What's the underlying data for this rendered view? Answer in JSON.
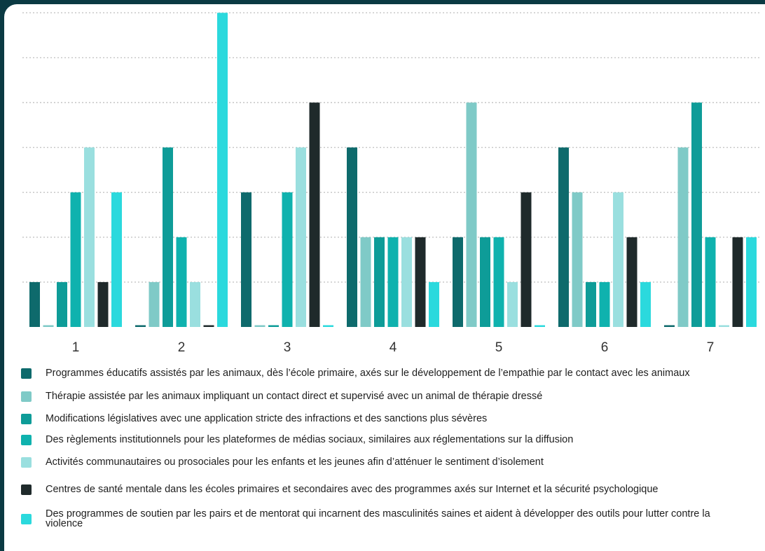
{
  "chart_data": {
    "type": "bar",
    "categories": [
      "1",
      "2",
      "3",
      "4",
      "5",
      "6",
      "7"
    ],
    "ylim": [
      0,
      7
    ],
    "grid": true,
    "legend_position": "bottom",
    "series": [
      {
        "name": "Programmes éducatifs assistés par les animaux, dès l’école primaire, axés sur le développement de l’empathie par le contact avec les animaux",
        "color": "#0e6a6c",
        "values": [
          1,
          0,
          3,
          4,
          2,
          4,
          0
        ]
      },
      {
        "name": "Thérapie assistée par les animaux impliquant un contact direct et supervisé avec un animal de thérapie dressé",
        "color": "#7fcac7",
        "values": [
          0,
          1,
          0,
          2,
          5,
          3,
          4
        ]
      },
      {
        "name": "Modifications législatives avec une application stricte des infractions et des sanctions plus sévères",
        "color": "#0e9c98",
        "values": [
          1,
          4,
          0,
          2,
          2,
          1,
          5
        ]
      },
      {
        "name": "Des règlements institutionnels pour les plateformes de médias sociaux, similaires aux réglementations sur la diffusion",
        "color": "#0fb2ae",
        "values": [
          3,
          2,
          3,
          2,
          2,
          1,
          2
        ]
      },
      {
        "name": "Activités communautaires ou prosociales pour les enfants et les jeunes afin d’atténuer le sentiment d’isolement",
        "color": "#9adfdf",
        "values": [
          4,
          1,
          4,
          2,
          1,
          3,
          0
        ]
      },
      {
        "name": "Centres de santé mentale dans les écoles primaires et secondaires avec des programmes axés sur Internet et la sécurité psychologique",
        "color": "#1f2a2b",
        "values": [
          1,
          0,
          5,
          2,
          3,
          2,
          2
        ]
      },
      {
        "name": "Des programmes de soutien par les pairs et de mentorat qui incarnent des masculinités saines et aident à développer des outils pour lutter contre la violence",
        "color": "#2bd9dd",
        "values": [
          3,
          7,
          0,
          1,
          0,
          1,
          2
        ]
      }
    ]
  }
}
